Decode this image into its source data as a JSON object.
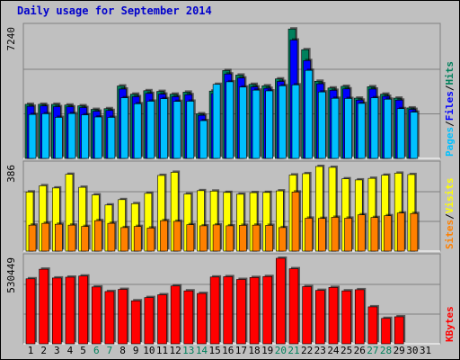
{
  "title": "Daily usage for September 2014",
  "colors": {
    "hits": "#00805c",
    "files": "#0000ff",
    "pages": "#00c0ff",
    "visits": "#ffff00",
    "sites": "#ff8000",
    "kbytes": "#ff0000",
    "weekend_label": "#00805c",
    "weekday_label": "#000000",
    "title": "#0000cc"
  },
  "chart_data": [
    {
      "type": "bar",
      "title": "Daily usage for September 2014",
      "categories": [
        "1",
        "2",
        "3",
        "4",
        "5",
        "6",
        "7",
        "8",
        "9",
        "10",
        "11",
        "12",
        "13",
        "14",
        "15",
        "16",
        "17",
        "18",
        "19",
        "20",
        "21",
        "22",
        "23",
        "24",
        "25",
        "26",
        "27",
        "28",
        "29",
        "30",
        "31"
      ],
      "weekend_days": [
        "6",
        "7",
        "13",
        "14",
        "20",
        "21",
        "27",
        "28"
      ],
      "ymax_label": "7240",
      "ylim": [
        0,
        7240
      ],
      "legend": [
        "Pages",
        "/",
        "Files",
        "/",
        "Hits"
      ],
      "series": [
        {
          "name": "Hits",
          "values": [
            2980,
            2980,
            2980,
            2940,
            2900,
            2700,
            2740,
            3990,
            3540,
            3730,
            3690,
            3540,
            3650,
            2460,
            3710,
            4840,
            4590,
            4080,
            4000,
            4380,
            7130,
            5990,
            4250,
            3880,
            3970,
            3320,
            3950,
            3540,
            3320,
            2780,
            0
          ]
        },
        {
          "name": "Files",
          "values": [
            2870,
            2890,
            2850,
            2840,
            2800,
            2600,
            2640,
            3820,
            3400,
            3580,
            3540,
            3400,
            3510,
            2370,
            3570,
            4650,
            4430,
            3940,
            3860,
            4240,
            6520,
            5390,
            4110,
            3750,
            3830,
            3210,
            3820,
            3420,
            3210,
            2700,
            0
          ]
        },
        {
          "name": "Pages",
          "values": [
            2420,
            2460,
            2260,
            2470,
            2400,
            2280,
            2260,
            3340,
            3010,
            3150,
            3290,
            3140,
            3150,
            2080,
            4080,
            4220,
            3930,
            3760,
            3720,
            4000,
            4050,
            4850,
            3660,
            3310,
            3300,
            3030,
            3340,
            3260,
            2740,
            2550,
            0
          ]
        }
      ]
    },
    {
      "type": "bar",
      "categories": [
        "1",
        "2",
        "3",
        "4",
        "5",
        "6",
        "7",
        "8",
        "9",
        "10",
        "11",
        "12",
        "13",
        "14",
        "15",
        "16",
        "17",
        "18",
        "19",
        "20",
        "21",
        "22",
        "23",
        "24",
        "25",
        "26",
        "27",
        "28",
        "29",
        "30",
        "31"
      ],
      "ymax_label": "386",
      "ylim": [
        0,
        386
      ],
      "legend": [
        "Sites",
        "/",
        "Visits"
      ],
      "series": [
        {
          "name": "Visits",
          "values": [
            264,
            292,
            282,
            343,
            285,
            251,
            206,
            230,
            212,
            258,
            338,
            352,
            255,
            270,
            268,
            262,
            254,
            261,
            262,
            269,
            340,
            346,
            378,
            374,
            323,
            318,
            325,
            339,
            348,
            342,
            0
          ]
        },
        {
          "name": "Sites",
          "values": [
            116,
            124,
            120,
            116,
            110,
            136,
            124,
            105,
            110,
            103,
            136,
            133,
            118,
            113,
            117,
            113,
            115,
            116,
            115,
            105,
            264,
            147,
            146,
            151,
            147,
            162,
            150,
            158,
            170,
            168,
            0
          ]
        }
      ]
    },
    {
      "type": "bar",
      "categories": [
        "1",
        "2",
        "3",
        "4",
        "5",
        "6",
        "7",
        "8",
        "9",
        "10",
        "11",
        "12",
        "13",
        "14",
        "15",
        "16",
        "17",
        "18",
        "19",
        "20",
        "21",
        "22",
        "23",
        "24",
        "25",
        "26",
        "27",
        "28",
        "29",
        "30",
        "31"
      ],
      "ymax_label": "530449",
      "ylim": [
        0,
        530449
      ],
      "legend": [
        "KBytes"
      ],
      "series": [
        {
          "name": "KBytes",
          "values": [
            399000,
            458000,
            404000,
            409000,
            416000,
            349000,
            321000,
            334000,
            264000,
            284000,
            301000,
            355000,
            325000,
            309000,
            410000,
            412000,
            395000,
            407000,
            413000,
            525000,
            461000,
            351000,
            328000,
            346000,
            325000,
            332000,
            227000,
            156000,
            166000,
            0,
            0
          ]
        }
      ]
    }
  ]
}
